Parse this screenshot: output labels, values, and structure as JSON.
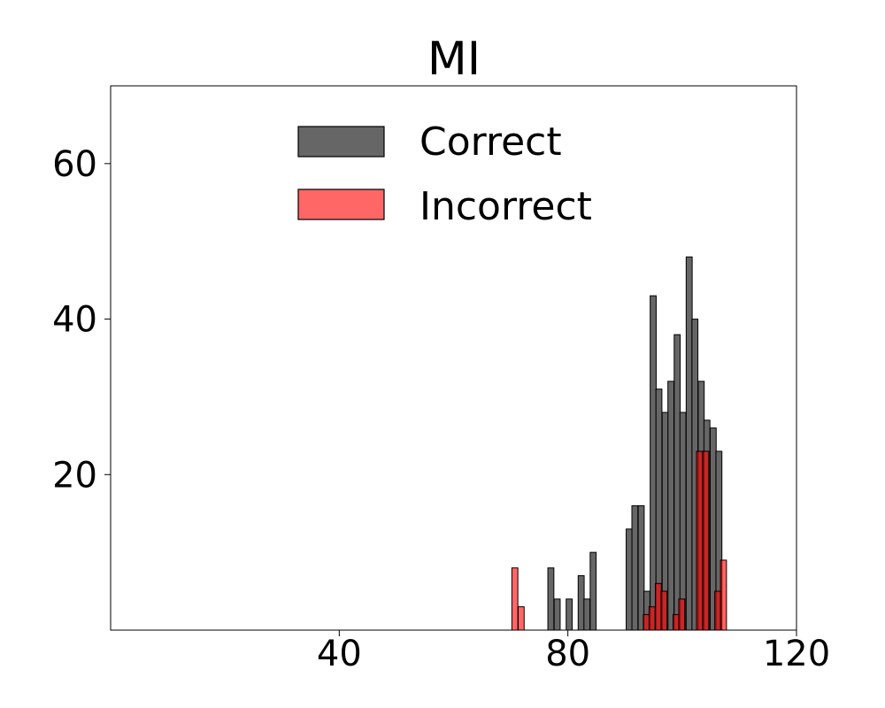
{
  "chart_data": {
    "type": "bar",
    "title": "MI",
    "xlabel": "",
    "ylabel": "",
    "xlim": [
      0,
      120
    ],
    "ylim": [
      0,
      70
    ],
    "xticks": [
      40,
      80,
      120
    ],
    "yticks": [
      20,
      40,
      60
    ],
    "grid": false,
    "legend_position": "top-center",
    "bin_width": 1.05,
    "series": [
      {
        "name": "Correct",
        "color": "#555555",
        "bins": [
          {
            "x": 76.5,
            "value": 8
          },
          {
            "x": 77.6,
            "value": 4
          },
          {
            "x": 79.7,
            "value": 4
          },
          {
            "x": 81.8,
            "value": 7
          },
          {
            "x": 82.8,
            "value": 4
          },
          {
            "x": 83.9,
            "value": 10
          },
          {
            "x": 90.2,
            "value": 13
          },
          {
            "x": 91.2,
            "value": 16
          },
          {
            "x": 92.3,
            "value": 16
          },
          {
            "x": 93.3,
            "value": 5
          },
          {
            "x": 94.4,
            "value": 43
          },
          {
            "x": 95.4,
            "value": 31
          },
          {
            "x": 96.5,
            "value": 28
          },
          {
            "x": 97.5,
            "value": 32
          },
          {
            "x": 98.6,
            "value": 38
          },
          {
            "x": 99.6,
            "value": 28
          },
          {
            "x": 100.7,
            "value": 48
          },
          {
            "x": 101.7,
            "value": 40
          },
          {
            "x": 102.8,
            "value": 32
          },
          {
            "x": 103.8,
            "value": 27
          },
          {
            "x": 104.9,
            "value": 26
          },
          {
            "x": 105.9,
            "value": 23
          }
        ]
      },
      {
        "name": "Incorrect",
        "color": "#ff0000",
        "bins": [
          {
            "x": 70.2,
            "value": 8
          },
          {
            "x": 71.3,
            "value": 3
          },
          {
            "x": 93.2,
            "value": 2
          },
          {
            "x": 94.2,
            "value": 3
          },
          {
            "x": 95.3,
            "value": 6
          },
          {
            "x": 96.3,
            "value": 5
          },
          {
            "x": 98.4,
            "value": 2
          },
          {
            "x": 99.4,
            "value": 4
          },
          {
            "x": 102.5,
            "value": 23
          },
          {
            "x": 103.6,
            "value": 23
          },
          {
            "x": 105.7,
            "value": 5
          },
          {
            "x": 106.7,
            "value": 9
          }
        ]
      }
    ]
  }
}
